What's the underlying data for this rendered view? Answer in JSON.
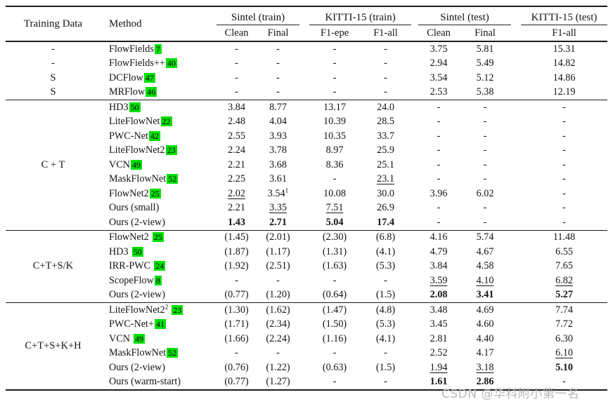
{
  "header": {
    "training_data": "Training Data",
    "method": "Method",
    "groups": [
      {
        "label": "Sintel (train)",
        "subs": [
          "Clean",
          "Final"
        ]
      },
      {
        "label": "KITTI-15 (train)",
        "subs": [
          "F1-epe",
          "F1-all"
        ]
      },
      {
        "label": "Sintel (test)",
        "subs": [
          "Clean",
          "Final"
        ]
      },
      {
        "label": "KITTI-15 (test)",
        "subs": [
          "F1-all"
        ]
      }
    ]
  },
  "colors": {
    "citation_highlight": "#00e004",
    "rule": "#1b1b1b",
    "watermark": "#b8b8b8"
  },
  "watermark": {
    "text": "CSDN @华科附小第一名"
  },
  "sections": [
    {
      "label": null,
      "rows": [
        {
          "training": "-",
          "method": {
            "name": "FlowFields",
            "cite": "7",
            "gap": false
          },
          "cells": [
            {
              "t": "-"
            },
            {
              "t": "-"
            },
            {
              "t": "-"
            },
            {
              "t": "-"
            },
            {
              "t": "3.75"
            },
            {
              "t": "5.81"
            },
            {
              "t": "15.31"
            }
          ]
        },
        {
          "training": "-",
          "method": {
            "name": "FlowFields++",
            "cite": "40",
            "gap": false
          },
          "cells": [
            {
              "t": "-"
            },
            {
              "t": "-"
            },
            {
              "t": "-"
            },
            {
              "t": "-"
            },
            {
              "t": "2.94"
            },
            {
              "t": "5.49"
            },
            {
              "t": "14.82"
            }
          ]
        },
        {
          "training": "S",
          "method": {
            "name": "DCFlow",
            "cite": "47",
            "gap": false
          },
          "cells": [
            {
              "t": "-"
            },
            {
              "t": "-"
            },
            {
              "t": "-"
            },
            {
              "t": "-"
            },
            {
              "t": "3.54"
            },
            {
              "t": "5.12"
            },
            {
              "t": "14.86"
            }
          ]
        },
        {
          "training": "S",
          "method": {
            "name": "MRFlow",
            "cite": "46",
            "gap": false
          },
          "cells": [
            {
              "t": "-"
            },
            {
              "t": "-"
            },
            {
              "t": "-"
            },
            {
              "t": "-"
            },
            {
              "t": "2.53"
            },
            {
              "t": "5.38"
            },
            {
              "t": "12.19"
            }
          ]
        }
      ]
    },
    {
      "label": "C + T",
      "rows": [
        {
          "method": {
            "name": "HD3",
            "cite": "50",
            "gap": false
          },
          "cells": [
            {
              "t": "3.84"
            },
            {
              "t": "8.77"
            },
            {
              "t": "13.17"
            },
            {
              "t": "24.0"
            },
            {
              "t": "-"
            },
            {
              "t": "-"
            },
            {
              "t": "-"
            }
          ]
        },
        {
          "method": {
            "name": "LiteFlowNet",
            "cite": "22",
            "gap": false
          },
          "cells": [
            {
              "t": "2.48"
            },
            {
              "t": "4.04"
            },
            {
              "t": "10.39"
            },
            {
              "t": "28.5"
            },
            {
              "t": "-"
            },
            {
              "t": "-"
            },
            {
              "t": "-"
            }
          ]
        },
        {
          "method": {
            "name": "PWC-Net",
            "cite": "42",
            "gap": false
          },
          "cells": [
            {
              "t": "2.55"
            },
            {
              "t": "3.93"
            },
            {
              "t": "10.35"
            },
            {
              "t": "33.7"
            },
            {
              "t": "-"
            },
            {
              "t": "-"
            },
            {
              "t": "-"
            }
          ]
        },
        {
          "method": {
            "name": "LiteFlowNet2",
            "cite": "23",
            "gap": false
          },
          "cells": [
            {
              "t": "2.24"
            },
            {
              "t": "3.78"
            },
            {
              "t": "8.97"
            },
            {
              "t": "25.9"
            },
            {
              "t": "-"
            },
            {
              "t": "-"
            },
            {
              "t": "-"
            }
          ]
        },
        {
          "method": {
            "name": "VCN",
            "cite": "49",
            "gap": false
          },
          "cells": [
            {
              "t": "2.21"
            },
            {
              "t": "3.68"
            },
            {
              "t": "8.36"
            },
            {
              "t": "25.1"
            },
            {
              "t": "-"
            },
            {
              "t": "-"
            },
            {
              "t": "-"
            }
          ]
        },
        {
          "method": {
            "name": "MaskFlowNet",
            "cite": "52",
            "gap": false
          },
          "cells": [
            {
              "t": "2.25"
            },
            {
              "t": "3.61"
            },
            {
              "t": "-"
            },
            {
              "t": "23.1",
              "u": true
            },
            {
              "t": "-"
            },
            {
              "t": "-"
            },
            {
              "t": "-"
            }
          ]
        },
        {
          "method": {
            "name": "FlowNet2",
            "cite": "25",
            "gap": false
          },
          "cells": [
            {
              "t": "2.02",
              "u": true
            },
            {
              "t": "3.54",
              "sup": "1"
            },
            {
              "t": "10.08"
            },
            {
              "t": "30.0"
            },
            {
              "t": "3.96"
            },
            {
              "t": "6.02"
            },
            {
              "t": "-"
            }
          ]
        },
        {
          "method": {
            "name": "Ours (small)"
          },
          "cells": [
            {
              "t": "2.21"
            },
            {
              "t": "3.35",
              "u": true
            },
            {
              "t": "7.51",
              "u": true
            },
            {
              "t": "26.9"
            },
            {
              "t": "-"
            },
            {
              "t": "-"
            },
            {
              "t": "-"
            }
          ]
        },
        {
          "method": {
            "name": "Ours (2-view)"
          },
          "cells": [
            {
              "t": "1.43",
              "b": true
            },
            {
              "t": "2.71",
              "b": true
            },
            {
              "t": "5.04",
              "b": true
            },
            {
              "t": "17.4",
              "b": true
            },
            {
              "t": "-"
            },
            {
              "t": "-"
            },
            {
              "t": "-"
            }
          ]
        }
      ]
    },
    {
      "label": "C+T+S/K",
      "rows": [
        {
          "method": {
            "name": "FlowNet2",
            "cite": "25",
            "gap": true
          },
          "cells": [
            {
              "t": "(1.45)"
            },
            {
              "t": "(2.01)"
            },
            {
              "t": "(2.30)"
            },
            {
              "t": "(6.8)"
            },
            {
              "t": "4.16"
            },
            {
              "t": "5.74"
            },
            {
              "t": "11.48"
            }
          ]
        },
        {
          "method": {
            "name": "HD3",
            "cite": "50",
            "gap": true
          },
          "cells": [
            {
              "t": "(1.87)"
            },
            {
              "t": "(1.17)"
            },
            {
              "t": "(1.31)"
            },
            {
              "t": "(4.1)"
            },
            {
              "t": "4.79"
            },
            {
              "t": "4.67"
            },
            {
              "t": "6.55"
            }
          ]
        },
        {
          "method": {
            "name": "IRR-PWC",
            "cite": "24",
            "gap": true
          },
          "cells": [
            {
              "t": "(1.92)"
            },
            {
              "t": "(2.51)"
            },
            {
              "t": "(1.63)"
            },
            {
              "t": "(5.3)"
            },
            {
              "t": "3.84"
            },
            {
              "t": "4.58"
            },
            {
              "t": "7.65"
            }
          ]
        },
        {
          "method": {
            "name": "ScopeFlow",
            "cite": "8",
            "gap": false
          },
          "cells": [
            {
              "t": "-"
            },
            {
              "t": "-"
            },
            {
              "t": "-"
            },
            {
              "t": "-"
            },
            {
              "t": "3.59",
              "u": true
            },
            {
              "t": "4.10",
              "u": true
            },
            {
              "t": "6.82",
              "u": true
            }
          ]
        },
        {
          "method": {
            "name": "Ours (2-view)"
          },
          "cells": [
            {
              "t": "(0.77)"
            },
            {
              "t": "(1.20)"
            },
            {
              "t": "(0.64)"
            },
            {
              "t": "(1.5)"
            },
            {
              "t": "2.08",
              "b": true
            },
            {
              "t": "3.41",
              "b": true
            },
            {
              "t": "5.27",
              "b": true
            }
          ]
        }
      ]
    },
    {
      "label": "C+T+S+K+H",
      "rows": [
        {
          "method": {
            "name": "LiteFlowNet2",
            "msup": "2",
            "cite": "23",
            "gap": true
          },
          "cells": [
            {
              "t": "(1.30)"
            },
            {
              "t": "(1.62)"
            },
            {
              "t": "(1.47)"
            },
            {
              "t": "(4.8)"
            },
            {
              "t": "3.48"
            },
            {
              "t": "4.69"
            },
            {
              "t": "7.74"
            }
          ]
        },
        {
          "method": {
            "name": "PWC-Net+",
            "cite": "41",
            "gap": false
          },
          "cells": [
            {
              "t": "(1.71)"
            },
            {
              "t": "(2.34)"
            },
            {
              "t": "(1.50)"
            },
            {
              "t": "(5.3)"
            },
            {
              "t": "3.45"
            },
            {
              "t": "4.60"
            },
            {
              "t": "7.72"
            }
          ]
        },
        {
          "method": {
            "name": "VCN",
            "cite": "49",
            "gap": true
          },
          "cells": [
            {
              "t": "(1.66)"
            },
            {
              "t": "(2.24)"
            },
            {
              "t": "(1.16)"
            },
            {
              "t": "(4.1)"
            },
            {
              "t": "2.81"
            },
            {
              "t": "4.40"
            },
            {
              "t": "6.30"
            }
          ]
        },
        {
          "method": {
            "name": "MaskFlowNet",
            "cite": "52",
            "gap": false
          },
          "cells": [
            {
              "t": "-"
            },
            {
              "t": "-"
            },
            {
              "t": "-"
            },
            {
              "t": "-"
            },
            {
              "t": "2.52"
            },
            {
              "t": "4.17"
            },
            {
              "t": "6.10",
              "u": true
            }
          ]
        },
        {
          "method": {
            "name": "Ours (2-view)"
          },
          "cells": [
            {
              "t": "(0.76)"
            },
            {
              "t": "(1.22)"
            },
            {
              "t": "(0.63)"
            },
            {
              "t": "(1.5)"
            },
            {
              "t": "1.94",
              "u": true
            },
            {
              "t": "3.18",
              "u": true
            },
            {
              "t": "5.10",
              "b": true
            }
          ]
        },
        {
          "method": {
            "name": "Ours (warm-start)"
          },
          "cells": [
            {
              "t": "(0.77)"
            },
            {
              "t": "(1.27)"
            },
            {
              "t": "-"
            },
            {
              "t": "-"
            },
            {
              "t": "1.61",
              "b": true
            },
            {
              "t": "2.86",
              "b": true
            },
            {
              "t": "-"
            }
          ]
        }
      ]
    }
  ]
}
